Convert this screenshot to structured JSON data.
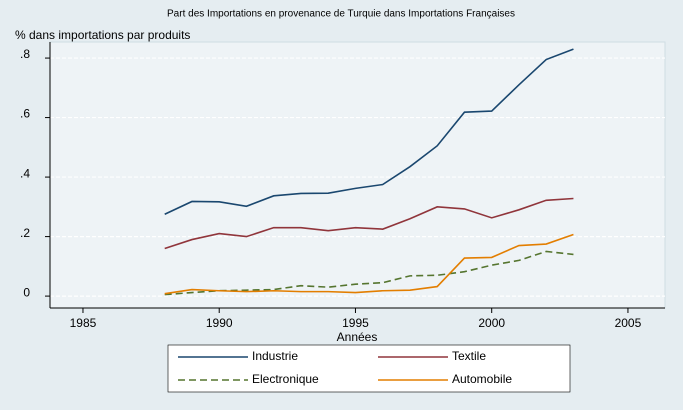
{
  "chart_data": {
    "type": "line",
    "title": "Part des Importations en provenance de Turquie dans Importations Françaises",
    "y_label": "% dans importations par produits",
    "x_label": "Années",
    "x": [
      1988,
      1989,
      1990,
      1991,
      1992,
      1993,
      1994,
      1995,
      1996,
      1997,
      1998,
      1999,
      2000,
      2001,
      2002,
      2003
    ],
    "series": [
      {
        "name": "Industrie",
        "color": "#1a476f",
        "values": [
          0.275,
          0.318,
          0.317,
          0.302,
          0.337,
          0.345,
          0.346,
          0.362,
          0.375,
          0.435,
          0.505,
          0.618,
          0.622,
          0.71,
          0.795,
          0.83
        ]
      },
      {
        "name": "Textile",
        "color": "#90353b",
        "values": [
          0.16,
          0.19,
          0.21,
          0.2,
          0.23,
          0.23,
          0.22,
          0.23,
          0.225,
          0.26,
          0.3,
          0.293,
          0.263,
          0.29,
          0.322,
          0.328
        ]
      },
      {
        "name": "Electronique",
        "color": "#55752f",
        "dash": "dashed",
        "values": [
          0.005,
          0.012,
          0.018,
          0.02,
          0.022,
          0.035,
          0.03,
          0.04,
          0.045,
          0.068,
          0.07,
          0.082,
          0.104,
          0.12,
          0.15,
          0.14
        ]
      },
      {
        "name": "Automobile",
        "color": "#e37e00",
        "values": [
          0.008,
          0.022,
          0.018,
          0.015,
          0.018,
          0.015,
          0.015,
          0.012,
          0.018,
          0.02,
          0.032,
          0.128,
          0.13,
          0.17,
          0.175,
          0.207
        ]
      }
    ],
    "xlim": [
      1983.79,
      2006.36
    ],
    "xticks": [
      1985,
      1990,
      1995,
      2000,
      2005
    ],
    "ylim": [
      -0.04,
      0.854
    ],
    "yticks": [
      {
        "value": 0,
        "label": "0"
      },
      {
        "value": 0.2,
        "label": ".2"
      },
      {
        "value": 0.4,
        "label": ".4"
      },
      {
        "value": 0.6,
        "label": ".6"
      },
      {
        "value": 0.8,
        "label": ".8"
      }
    ],
    "grid": true
  }
}
